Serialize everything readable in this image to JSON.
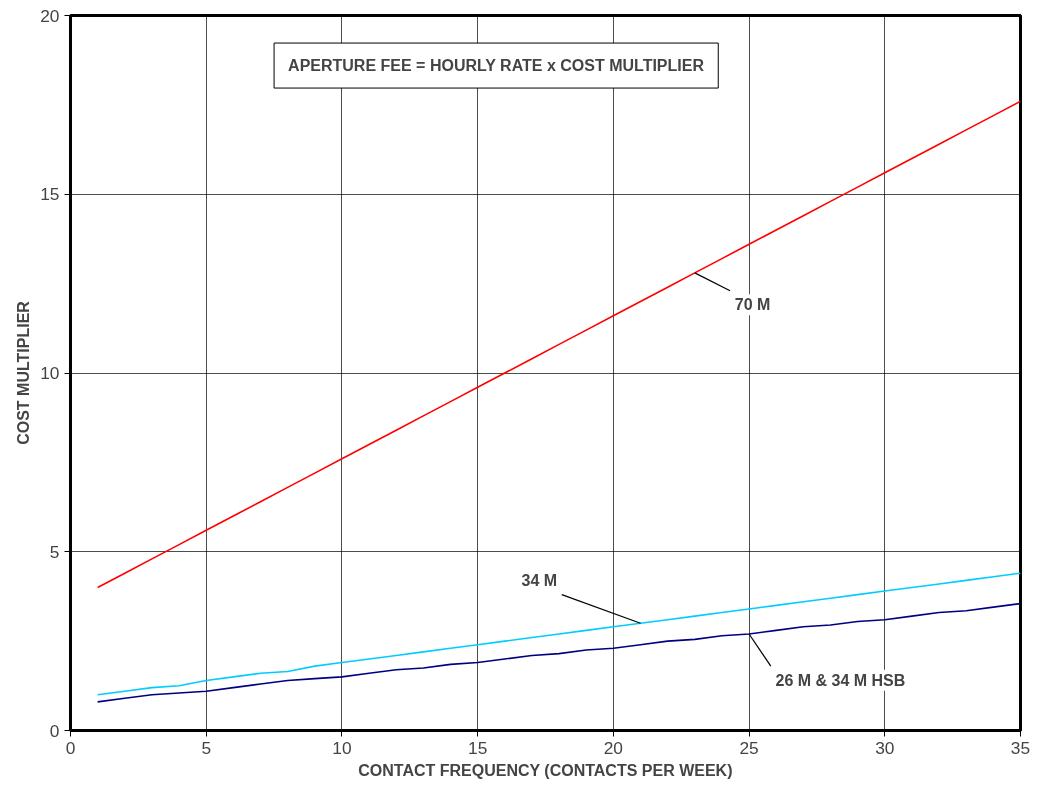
{
  "chart_data": {
    "type": "line",
    "title": "APERTURE FEE = HOURLY RATE x COST MULTIPLIER",
    "xlabel": "CONTACT FREQUENCY (CONTACTS PER WEEK)",
    "ylabel": "COST MULTIPLIER",
    "x": [
      1,
      2,
      3,
      4,
      5,
      6,
      7,
      8,
      9,
      10,
      11,
      12,
      13,
      14,
      15,
      16,
      17,
      18,
      19,
      20,
      21,
      22,
      23,
      24,
      25,
      26,
      27,
      28,
      29,
      30,
      31,
      32,
      33,
      34,
      35
    ],
    "series": [
      {
        "name": "70 M",
        "color": "#ff0000",
        "values": [
          4.0,
          4.4,
          4.8,
          5.2,
          5.6,
          6.0,
          6.4,
          6.8,
          7.2,
          7.6,
          8.0,
          8.4,
          8.8,
          9.2,
          9.6,
          10.0,
          10.4,
          10.8,
          11.2,
          11.6,
          12.0,
          12.4,
          12.8,
          13.2,
          13.6,
          14.0,
          14.4,
          14.8,
          15.2,
          15.6,
          16.0,
          16.4,
          16.8,
          17.2,
          17.6
        ]
      },
      {
        "name": "34 M",
        "color": "#00ccff",
        "values": [
          1.0,
          1.1,
          1.2,
          1.25,
          1.4,
          1.5,
          1.6,
          1.65,
          1.8,
          1.9,
          2.0,
          2.1,
          2.2,
          2.3,
          2.4,
          2.5,
          2.6,
          2.7,
          2.8,
          2.9,
          3.0,
          3.1,
          3.2,
          3.3,
          3.4,
          3.5,
          3.6,
          3.7,
          3.8,
          3.9,
          4.0,
          4.1,
          4.2,
          4.3,
          4.4
        ]
      },
      {
        "name": "26 M & 34 M HSB",
        "color": "#000080",
        "values": [
          0.8,
          0.9,
          1.0,
          1.05,
          1.1,
          1.2,
          1.3,
          1.4,
          1.45,
          1.5,
          1.6,
          1.7,
          1.75,
          1.85,
          1.9,
          2.0,
          2.1,
          2.15,
          2.25,
          2.3,
          2.4,
          2.5,
          2.55,
          2.65,
          2.7,
          2.8,
          2.9,
          2.95,
          3.05,
          3.1,
          3.2,
          3.3,
          3.35,
          3.45,
          3.55
        ]
      }
    ],
    "xlim": [
      0,
      35
    ],
    "xticks": [
      0,
      5,
      10,
      15,
      20,
      25,
      30,
      35
    ],
    "ylim": [
      0,
      20
    ],
    "yticks": [
      0,
      5,
      10,
      15,
      20
    ],
    "grid": true,
    "marker": "none",
    "line_style": "solid"
  }
}
